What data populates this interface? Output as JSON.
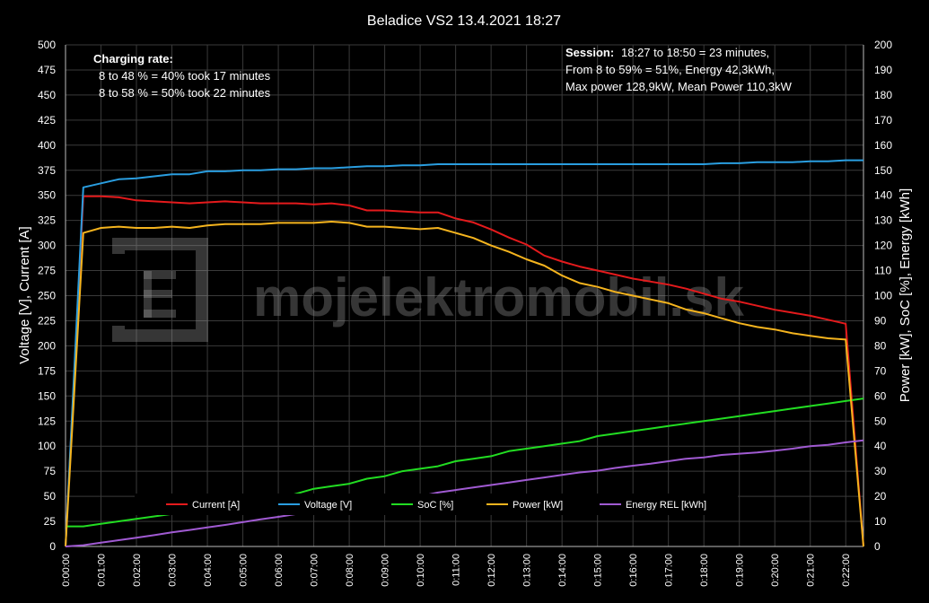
{
  "chart_data": {
    "type": "line",
    "title": "Beladice VS2 13.4.2021 18:27",
    "ylabel_left": "Voltage [V], Current [A]",
    "ylabel_right": "Power [kW], SoC [%], Energy [kWh]",
    "xlabel": "",
    "ylim_left": [
      0,
      500
    ],
    "ylim_right": [
      0,
      200
    ],
    "yticks_left": [
      0,
      25,
      50,
      75,
      100,
      125,
      150,
      175,
      200,
      225,
      250,
      275,
      300,
      325,
      350,
      375,
      400,
      425,
      450,
      475,
      500
    ],
    "yticks_right": [
      0,
      10,
      20,
      30,
      40,
      50,
      60,
      70,
      80,
      90,
      100,
      110,
      120,
      130,
      140,
      150,
      160,
      170,
      180,
      190,
      200
    ],
    "x_ticks": [
      "0:00:00",
      "0:01:00",
      "0:02:00",
      "0:03:00",
      "0:04:00",
      "0:05:00",
      "0:06:00",
      "0:07:00",
      "0:08:00",
      "0:09:00",
      "0:10:00",
      "0:11:00",
      "0:12:00",
      "0:13:00",
      "0:14:00",
      "0:15:00",
      "0:16:00",
      "0:17:00",
      "0:18:00",
      "0:19:00",
      "0:20:00",
      "0:21:00",
      "0:22:00"
    ],
    "x_range_minutes": [
      0,
      22.5
    ],
    "grid": true,
    "legend_position": "bottom-center",
    "series": [
      {
        "name": "Current [A]",
        "axis": "left",
        "color": "#e41a1c",
        "x": [
          0,
          0.5,
          1,
          1.5,
          2,
          2.5,
          3,
          3.5,
          4,
          4.5,
          5,
          5.5,
          6,
          6.5,
          7,
          7.5,
          8,
          8.5,
          9,
          9.5,
          10,
          10.5,
          11,
          11.5,
          12,
          12.5,
          13,
          13.5,
          14,
          14.5,
          15,
          15.5,
          16,
          16.5,
          17,
          17.5,
          18,
          18.5,
          19,
          19.5,
          20,
          20.5,
          21,
          21.5,
          22,
          22.5
        ],
        "y": [
          0,
          349,
          349,
          348,
          345,
          344,
          343,
          342,
          343,
          344,
          343,
          342,
          342,
          342,
          341,
          342,
          340,
          335,
          335,
          334,
          333,
          333,
          327,
          323,
          316,
          308,
          301,
          290,
          284,
          279,
          275,
          271,
          267,
          264,
          261,
          257,
          252,
          247,
          244,
          240,
          236,
          233,
          230,
          226,
          222,
          0
        ]
      },
      {
        "name": "Voltage [V]",
        "axis": "left",
        "color": "#2a9ee0",
        "x": [
          0,
          0.5,
          1,
          1.5,
          2,
          2.5,
          3,
          3.5,
          4,
          4.5,
          5,
          5.5,
          6,
          6.5,
          7,
          7.5,
          8,
          8.5,
          9,
          9.5,
          10,
          10.5,
          11,
          11.5,
          12,
          12.5,
          13,
          13.5,
          14,
          14.5,
          15,
          15.5,
          16,
          16.5,
          17,
          17.5,
          18,
          18.5,
          19,
          19.5,
          20,
          20.5,
          21,
          21.5,
          22,
          22.5
        ],
        "y": [
          0,
          358,
          362,
          366,
          367,
          369,
          371,
          371,
          374,
          374,
          375,
          375,
          376,
          376,
          377,
          377,
          378,
          379,
          379,
          380,
          380,
          381,
          381,
          381,
          381,
          381,
          381,
          381,
          381,
          381,
          381,
          381,
          381,
          381,
          381,
          381,
          381,
          382,
          382,
          383,
          383,
          383,
          384,
          384,
          385,
          385
        ]
      },
      {
        "name": "SoC [%]",
        "axis": "right",
        "color": "#22dd22",
        "x": [
          0,
          0.5,
          1,
          1.5,
          2,
          2.5,
          3,
          3.5,
          4,
          4.5,
          5,
          5.5,
          6,
          6.5,
          7,
          7.5,
          8,
          8.5,
          9,
          9.5,
          10,
          10.5,
          11,
          11.5,
          12,
          12.5,
          13,
          13.5,
          14,
          14.5,
          15,
          15.5,
          16,
          16.5,
          17,
          17.5,
          18,
          18.5,
          19,
          19.5,
          20,
          20.5,
          21,
          21.5,
          22,
          22.5
        ],
        "y": [
          8,
          8,
          9,
          10,
          11,
          12,
          13,
          14,
          15,
          16,
          17,
          18,
          19,
          21,
          23,
          24,
          25,
          27,
          28,
          30,
          31,
          32,
          34,
          35,
          36,
          38,
          39,
          40,
          41,
          42,
          44,
          45,
          46,
          47,
          48,
          49,
          50,
          51,
          52,
          53,
          54,
          55,
          56,
          57,
          58,
          59
        ]
      },
      {
        "name": "Power [kW]",
        "axis": "right",
        "color": "#f5b41e",
        "x": [
          0,
          0.5,
          1,
          1.5,
          2,
          2.5,
          3,
          3.5,
          4,
          4.5,
          5,
          5.5,
          6,
          6.5,
          7,
          7.5,
          8,
          8.5,
          9,
          9.5,
          10,
          10.5,
          11,
          11.5,
          12,
          12.5,
          13,
          13.5,
          14,
          14.5,
          15,
          15.5,
          16,
          16.5,
          17,
          17.5,
          18,
          18.5,
          19,
          19.5,
          20,
          20.5,
          21,
          21.5,
          22,
          22.5
        ],
        "y": [
          0,
          125,
          127,
          127.5,
          127,
          127,
          127.5,
          127,
          128,
          128.5,
          128.5,
          128.5,
          129,
          129,
          129,
          129.5,
          129,
          127.5,
          127.5,
          127,
          126.5,
          127,
          125,
          123,
          120,
          117.5,
          114.5,
          112,
          108,
          105,
          103.5,
          101.5,
          100,
          98.5,
          97,
          94.5,
          93,
          91,
          89,
          87.5,
          86.5,
          85,
          84,
          83,
          82.5,
          0
        ]
      },
      {
        "name": "Energy REL [kWh]",
        "axis": "right",
        "color": "#a05ad2",
        "x": [
          0,
          0.5,
          1,
          1.5,
          2,
          2.5,
          3,
          3.5,
          4,
          4.5,
          5,
          5.5,
          6,
          6.5,
          7,
          7.5,
          8,
          8.5,
          9,
          9.5,
          10,
          10.5,
          11,
          11.5,
          12,
          12.5,
          13,
          13.5,
          14,
          14.5,
          15,
          15.5,
          16,
          16.5,
          17,
          17.5,
          18,
          18.5,
          19,
          19.5,
          20,
          20.5,
          21,
          21.5,
          22,
          22.5
        ],
        "y": [
          0,
          0.5,
          1.5,
          2.5,
          3.5,
          4.5,
          5.6,
          6.6,
          7.6,
          8.6,
          9.7,
          10.8,
          11.8,
          12.9,
          13.9,
          15,
          16,
          17,
          18,
          19,
          20,
          21.5,
          22.5,
          23.5,
          24.5,
          25.5,
          26.5,
          27.5,
          28.5,
          29.5,
          30.2,
          31.3,
          32.2,
          33,
          34,
          35,
          35.5,
          36.5,
          37,
          37.5,
          38.2,
          39,
          40,
          40.5,
          41.5,
          42.3
        ]
      }
    ],
    "annotations": {
      "charging_title": "Charging rate:",
      "charging_line1": "8 to 48 % = 40% took 17 minutes",
      "charging_line2": "8 to 58 % = 50% took 22 minutes",
      "session_label": "Session:",
      "session_line1": "18:27 to 18:50 = 23 minutes,",
      "session_line2": "From 8 to 59% = 51%, Energy 42,3kWh,",
      "session_line3": "Max power 128,9kW, Mean Power  110,3kW"
    },
    "watermark": "mojelektromobil.sk"
  }
}
